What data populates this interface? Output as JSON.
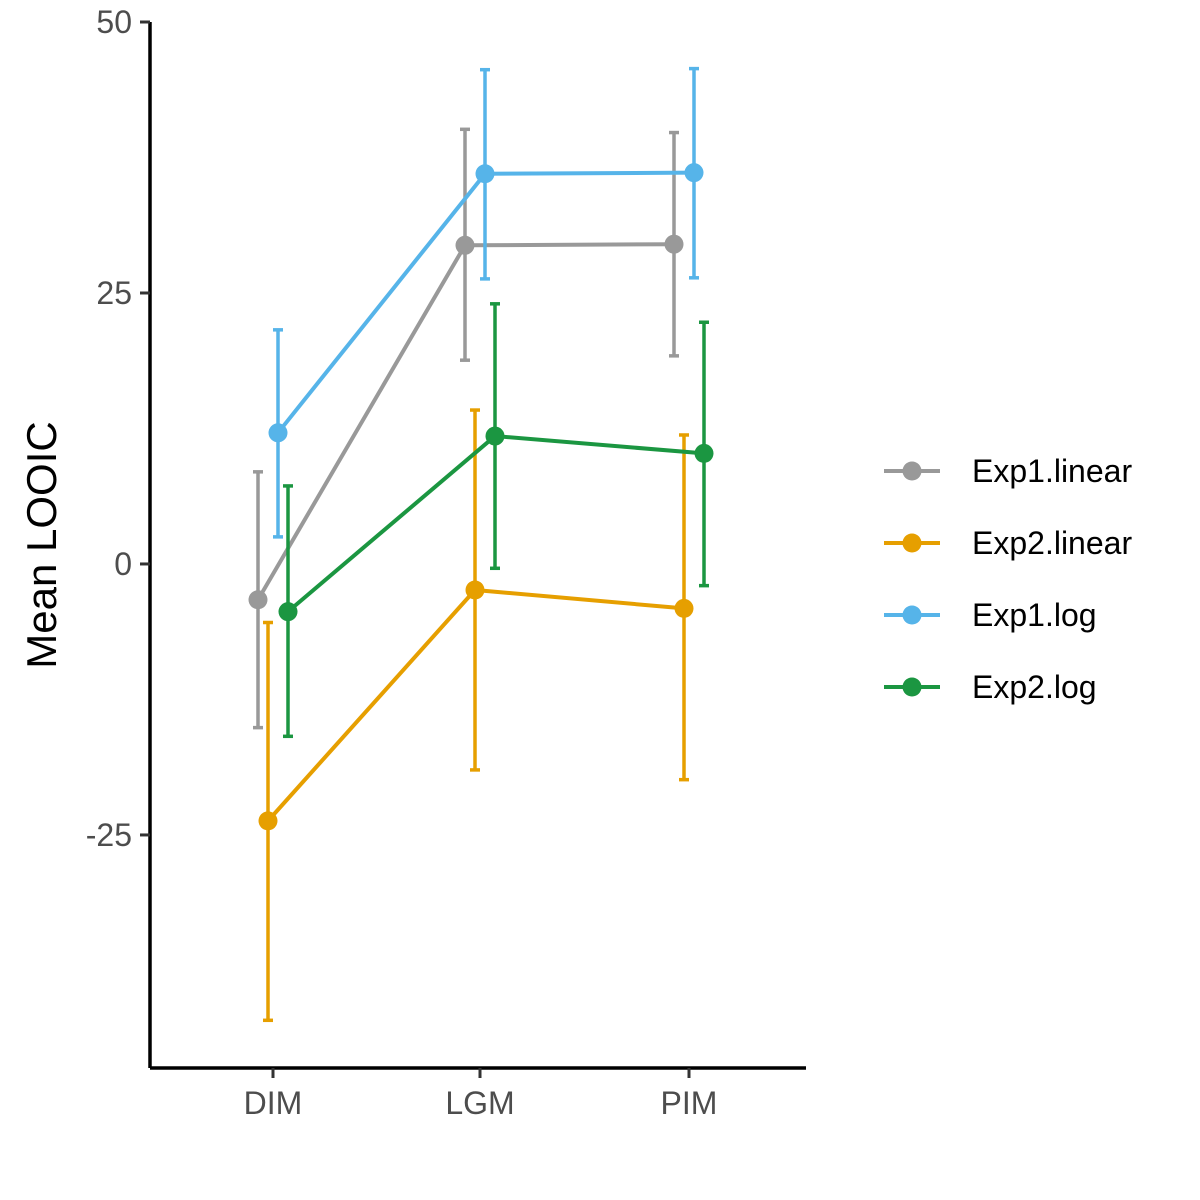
{
  "chart_data": {
    "type": "line",
    "title": "",
    "xlabel": "",
    "ylabel": "Mean LOOIC",
    "categories": [
      "DIM",
      "LGM",
      "PIM"
    ],
    "yticks": [
      -25,
      0,
      25,
      50
    ],
    "ytick_labels": [
      "-25",
      "0",
      "25",
      "50"
    ],
    "ylim": [
      -46.5,
      50
    ],
    "grid": false,
    "legend_position": "right",
    "series": [
      {
        "name": "Exp1.linear",
        "color": "#999999",
        "values": [
          -3.3,
          29.4,
          29.5
        ],
        "lower": [
          -15.1,
          18.8,
          19.2
        ],
        "upper": [
          8.5,
          40.1,
          39.8
        ]
      },
      {
        "name": "Exp2.linear",
        "color": "#E69F00",
        "values": [
          -23.7,
          -2.4,
          -4.1
        ],
        "lower": [
          -42.1,
          -19.0,
          -19.9
        ],
        "upper": [
          -5.4,
          14.2,
          11.9
        ]
      },
      {
        "name": "Exp1.log",
        "color": "#56B4E9",
        "values": [
          12.1,
          36.0,
          36.1
        ],
        "lower": [
          2.5,
          26.3,
          26.4
        ],
        "upper": [
          21.6,
          45.6,
          45.7
        ]
      },
      {
        "name": "Exp2.log",
        "color": "#1B9641",
        "values": [
          -4.4,
          11.8,
          10.2
        ],
        "lower": [
          -15.9,
          -0.4,
          -2.0
        ],
        "upper": [
          7.2,
          24.0,
          22.3
        ]
      }
    ]
  }
}
